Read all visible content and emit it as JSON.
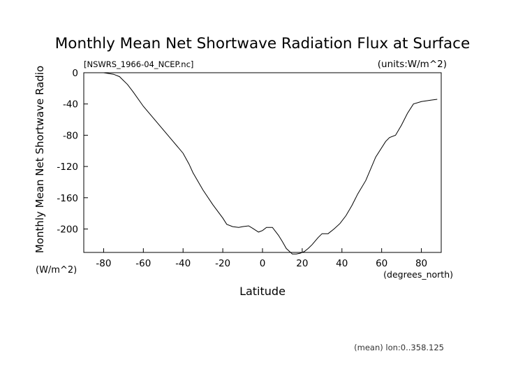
{
  "chart_data": {
    "type": "line",
    "title": "Monthly Mean Net Shortwave Radiation Flux at Surface",
    "subtitle_left": "[NSWRS_1966-04_NCEP.nc]",
    "subtitle_right": "(units:W/m^2)",
    "xlabel": "Latitude",
    "xunits": "(degrees_north)",
    "ylabel": "Monthly Mean Net Shortwave Radio",
    "yunits": "(W/m^2)",
    "footnote": "(mean) lon:0..358.125",
    "xlim": [
      -90,
      90
    ],
    "ylim": [
      -230,
      0
    ],
    "xticks": [
      -80,
      -60,
      -40,
      -20,
      0,
      20,
      40,
      60,
      80
    ],
    "yticks": [
      0,
      -40,
      -80,
      -120,
      -160,
      -200
    ],
    "grid": false,
    "series": [
      {
        "x": [
          -90,
          -85,
          -80,
          -75,
          -72,
          -68,
          -65,
          -60,
          -55,
          -50,
          -45,
          -40,
          -37,
          -35,
          -30,
          -25,
          -20,
          -18,
          -15,
          -12,
          -10,
          -7,
          -5,
          -2,
          0,
          2,
          5,
          8,
          10,
          12,
          15,
          17,
          19,
          21,
          23,
          25,
          28,
          30,
          33,
          36,
          39,
          42,
          45,
          48,
          52,
          57,
          62,
          64,
          67,
          70,
          73,
          76,
          80,
          85,
          88
        ],
        "y": [
          0,
          0,
          0,
          -2,
          -5,
          -15,
          -25,
          -43,
          -58,
          -73,
          -88,
          -103,
          -117,
          -128,
          -150,
          -169,
          -186,
          -194,
          -197,
          -198,
          -197,
          -196,
          -199,
          -204,
          -202,
          -198,
          -198,
          -208,
          -216,
          -225,
          -232,
          -232,
          -231,
          -229,
          -225,
          -220,
          -211,
          -206,
          -206,
          -200,
          -193,
          -183,
          -170,
          -155,
          -138,
          -108,
          -88,
          -83,
          -80,
          -67,
          -52,
          -40,
          -37,
          -35,
          -34
        ]
      }
    ]
  }
}
